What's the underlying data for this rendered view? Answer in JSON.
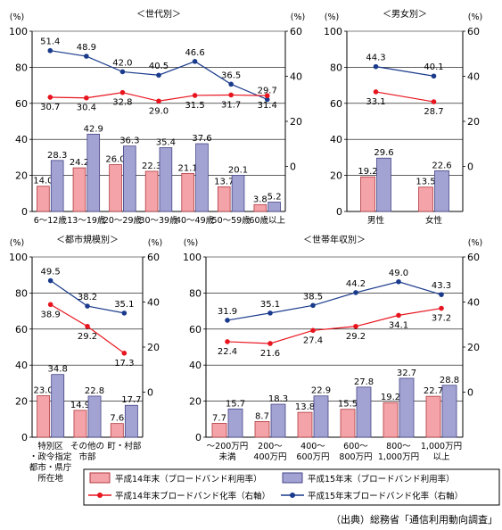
{
  "colors": {
    "bar14": "#f4a3a8",
    "bar14_edge": "#b03a40",
    "bar15": "#a3a3d3",
    "bar15_edge": "#444488",
    "line14": "#e8141e",
    "line15": "#1a3a8c"
  },
  "legend": {
    "bar14": "平成14年末（ブロードバンド利用率）",
    "bar15": "平成15年末（ブロードバンド利用率）",
    "line14": "平成14年末ブロードバンド化率（右軸）",
    "line15": "平成15年末ブロードバンド化率（右軸）"
  },
  "source": "（出典）総務省「通信利用動向調査」",
  "chart_data": [
    {
      "type": "bar",
      "title": "＜世代別＞",
      "left_unit": "(%)",
      "right_unit": "(%)",
      "left_ticks": [
        "0",
        "20",
        "40",
        "60",
        "80",
        "100"
      ],
      "right_ticks": [
        "0",
        "20",
        "40",
        "60"
      ],
      "ylim_left": [
        0,
        100
      ],
      "ylim_right": [
        -20,
        60
      ],
      "categories": [
        "6～12歳",
        "13～19歳",
        "20～29歳",
        "30～39歳",
        "40～49歳",
        "50～59歳",
        "60歳以上"
      ],
      "bars14": [
        14.0,
        24.2,
        26.0,
        22.3,
        21.1,
        13.7,
        3.8
      ],
      "bars15": [
        28.3,
        42.9,
        36.3,
        35.4,
        37.6,
        20.1,
        5.2
      ],
      "bars14_text": [
        "14.0",
        "24.2",
        "26.0",
        "22.3",
        "21.1",
        "13.7",
        "3.8"
      ],
      "bars15_text": [
        "28.3",
        "42.9",
        "36.3",
        "35.4",
        "37.6",
        "20.1",
        "5.2"
      ],
      "line14": [
        30.7,
        30.4,
        32.8,
        29.0,
        31.5,
        31.7,
        31.4
      ],
      "line15": [
        51.4,
        48.9,
        42.0,
        40.5,
        46.6,
        36.5,
        29.7
      ],
      "line14_text": [
        "30.7",
        "30.4",
        "32.8",
        "29.0",
        "31.5",
        "31.7",
        "31.4"
      ],
      "line15_text": [
        "51.4",
        "48.9",
        "42.0",
        "40.5",
        "46.6",
        "36.5",
        "29.7"
      ]
    },
    {
      "type": "bar",
      "title": "＜男女別＞",
      "left_unit": "(%)",
      "right_unit": "(%)",
      "left_ticks": [
        "0",
        "20",
        "40",
        "60",
        "80",
        "100"
      ],
      "right_ticks": [
        "0",
        "20",
        "40",
        "60"
      ],
      "ylim_left": [
        0,
        100
      ],
      "ylim_right": [
        -20,
        60
      ],
      "categories": [
        "男性",
        "女性"
      ],
      "bars14": [
        19.2,
        13.5
      ],
      "bars15": [
        29.6,
        22.6
      ],
      "bars14_text": [
        "19.2",
        "13.5"
      ],
      "bars15_text": [
        "29.6",
        "22.6"
      ],
      "line14": [
        33.1,
        28.7
      ],
      "line15": [
        44.3,
        40.1
      ],
      "line14_text": [
        "33.1",
        "28.7"
      ],
      "line15_text": [
        "44.3",
        "40.1"
      ]
    },
    {
      "type": "bar",
      "title": "＜都市規模別＞",
      "left_unit": "(%)",
      "right_unit": "(%)",
      "left_ticks": [
        "0",
        "20",
        "40",
        "60",
        "80",
        "100"
      ],
      "right_ticks": [
        "0",
        "20",
        "40",
        "60"
      ],
      "ylim_left": [
        0,
        100
      ],
      "ylim_right": [
        -20,
        60
      ],
      "categories": [
        "特別区・政令指定都市・県庁所在地",
        "その他の市部",
        "町・村部"
      ],
      "category_lines": [
        [
          "特別区",
          "・政令指定",
          "都市・県庁",
          "所在地"
        ],
        [
          "その他の",
          "市部"
        ],
        [
          "町・村部"
        ]
      ],
      "bars14": [
        23.0,
        14.9,
        7.6
      ],
      "bars15": [
        34.8,
        22.8,
        17.7
      ],
      "bars14_text": [
        "23.0",
        "14.9",
        "7.6"
      ],
      "bars15_text": [
        "34.8",
        "22.8",
        "17.7"
      ],
      "line14": [
        38.9,
        29.2,
        17.3
      ],
      "line15": [
        49.5,
        38.2,
        35.1
      ],
      "line14_text": [
        "38.9",
        "29.2",
        "17.3"
      ],
      "line15_text": [
        "49.5",
        "38.2",
        "35.1"
      ]
    },
    {
      "type": "bar",
      "title": "＜世帯年収別＞",
      "left_unit": "(%)",
      "right_unit": "(%)",
      "left_ticks": [
        "0",
        "20",
        "40",
        "60",
        "80",
        "100"
      ],
      "right_ticks": [
        "0",
        "20",
        "40",
        "60"
      ],
      "ylim_left": [
        0,
        100
      ],
      "ylim_right": [
        -20,
        60
      ],
      "categories": [
        "～200万円未満",
        "200～400万円",
        "400～600万円",
        "600～800万円",
        "800～1,000万円",
        "1,000万円以上"
      ],
      "category_lines": [
        [
          "～200万円",
          "未満"
        ],
        [
          "200～",
          "400万円"
        ],
        [
          "400～",
          "600万円"
        ],
        [
          "600～",
          "800万円"
        ],
        [
          "800～",
          "1,000万円"
        ],
        [
          "1,000万円",
          "以上"
        ]
      ],
      "bars14": [
        7.7,
        8.7,
        13.8,
        15.5,
        19.2,
        22.7
      ],
      "bars15": [
        15.7,
        18.3,
        22.9,
        27.8,
        32.7,
        28.8
      ],
      "bars14_text": [
        "7.7",
        "8.7",
        "13.8",
        "15.5",
        "19.2",
        "22.7"
      ],
      "bars15_text": [
        "15.7",
        "18.3",
        "22.9",
        "27.8",
        "32.7",
        "28.8"
      ],
      "line14": [
        22.4,
        21.6,
        27.4,
        29.2,
        34.1,
        37.2
      ],
      "line15": [
        31.9,
        35.1,
        38.5,
        44.2,
        49.0,
        43.3
      ],
      "line14_text": [
        "22.4",
        "21.6",
        "27.4",
        "29.2",
        "34.1",
        "37.2"
      ],
      "line15_text": [
        "31.9",
        "35.1",
        "38.5",
        "44.2",
        "49.0",
        "43.3"
      ]
    }
  ]
}
